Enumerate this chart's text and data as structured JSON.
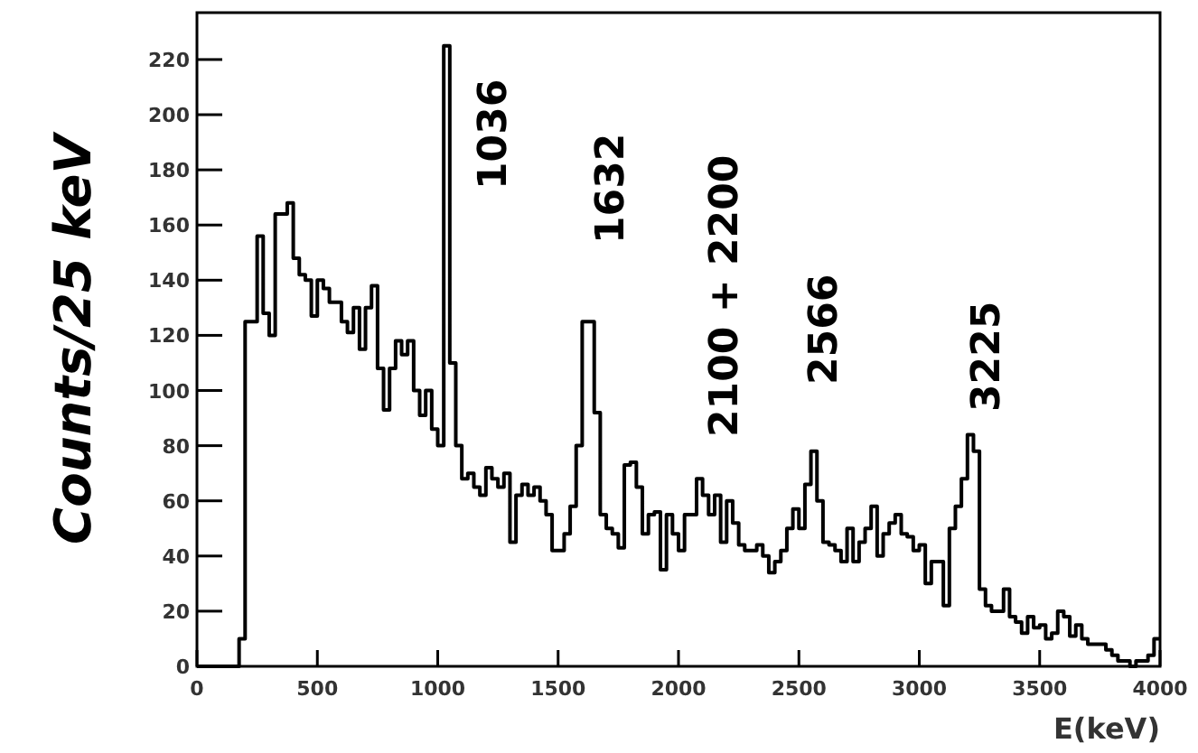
{
  "chart_data": {
    "type": "histogram",
    "xlabel": "E(keV)",
    "ylabel": "Counts/25 keV",
    "color": "#000000",
    "bins": [
      0,
      25,
      50,
      75,
      100,
      125,
      150,
      175,
      200,
      225,
      250,
      275,
      300,
      325,
      350,
      375,
      400,
      425,
      450,
      475,
      500,
      525,
      550,
      575,
      600,
      625,
      650,
      675,
      700,
      725,
      750,
      775,
      800,
      825,
      850,
      875,
      900,
      925,
      950,
      975,
      1000,
      1025,
      1050,
      1075,
      1100,
      1125,
      1150,
      1175,
      1200,
      1225,
      1250,
      1275,
      1300,
      1325,
      1350,
      1375,
      1400,
      1425,
      1450,
      1475,
      1500,
      1525,
      1550,
      1575,
      1600,
      1625,
      1650,
      1675,
      1700,
      1725,
      1750,
      1775,
      1800,
      1825,
      1850,
      1875,
      1900,
      1925,
      1950,
      1975,
      2000,
      2025,
      2050,
      2075,
      2100,
      2125,
      2150,
      2175,
      2200,
      2225,
      2250,
      2275,
      2300,
      2325,
      2350,
      2375,
      2400,
      2425,
      2450,
      2475,
      2500,
      2525,
      2550,
      2575,
      2600,
      2625,
      2650,
      2675,
      2700,
      2725,
      2750,
      2775,
      2800,
      2825,
      2850,
      2875,
      2900,
      2925,
      2950,
      2975,
      3000,
      3025,
      3050,
      3075,
      3100,
      3125,
      3150,
      3175,
      3200,
      3225,
      3250,
      3275,
      3300,
      3325,
      3350,
      3375,
      3400,
      3425,
      3450,
      3475,
      3500,
      3525,
      3550,
      3575,
      3600,
      3625,
      3650,
      3675,
      3700,
      3725,
      3750,
      3775,
      3800,
      3825,
      3850,
      3875,
      3900,
      3925,
      3950,
      3975,
      4000
    ],
    "values": [
      0,
      0,
      0,
      0,
      0,
      0,
      0,
      10,
      125,
      125,
      156,
      128,
      120,
      164,
      164,
      168,
      148,
      142,
      140,
      127,
      140,
      137,
      132,
      132,
      125,
      121,
      130,
      115,
      130,
      138,
      108,
      93,
      108,
      118,
      113,
      118,
      100,
      91,
      100,
      86,
      80,
      225,
      110,
      80,
      68,
      70,
      65,
      62,
      72,
      68,
      65,
      70,
      45,
      62,
      66,
      62,
      65,
      60,
      55,
      42,
      42,
      48,
      58,
      80,
      125,
      125,
      92,
      55,
      50,
      48,
      43,
      73,
      74,
      65,
      48,
      55,
      56,
      35,
      55,
      48,
      42,
      55,
      55,
      68,
      62,
      55,
      62,
      45,
      60,
      52,
      44,
      42,
      42,
      44,
      40,
      34,
      38,
      42,
      50,
      57,
      50,
      66,
      78,
      60,
      45,
      44,
      42,
      38,
      50,
      38,
      45,
      50,
      58,
      40,
      48,
      52,
      55,
      48,
      47,
      42,
      44,
      30,
      38,
      38,
      22,
      50,
      58,
      68,
      84,
      78,
      28,
      22,
      20,
      20,
      28,
      18,
      16,
      12,
      18,
      14,
      15,
      10,
      12,
      20,
      18,
      11,
      15,
      10,
      8,
      8,
      8,
      6,
      4,
      2,
      2,
      0,
      2,
      2,
      4,
      10
    ],
    "xlim": [
      0,
      4000
    ],
    "xticks": [
      0,
      500,
      1000,
      1500,
      2000,
      2500,
      3000,
      3500,
      4000
    ],
    "ylim": [
      0,
      237
    ],
    "yticks": [
      0,
      20,
      40,
      60,
      80,
      100,
      120,
      140,
      160,
      180,
      200,
      220
    ],
    "grid": false,
    "annotations": [
      "1036",
      "1632",
      "2100 + 2200",
      "2566",
      "3225"
    ]
  }
}
